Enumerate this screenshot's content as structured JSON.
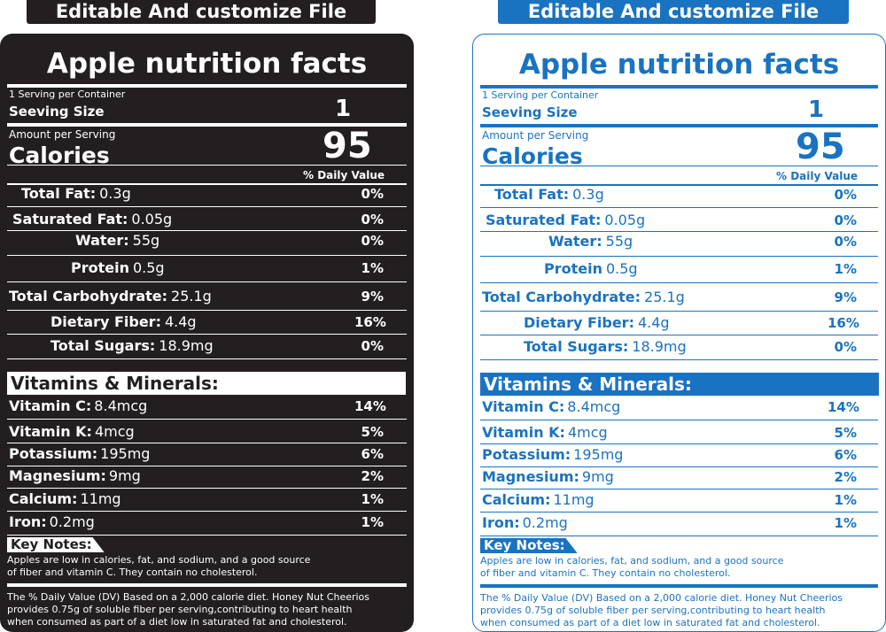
{
  "banner": "Editable And customize File",
  "title": "Apple nutrition facts",
  "servings_per_container": "1 Serving per Container",
  "serving_size_label": "Seeving Size",
  "serving_size_value": "1",
  "amount_per_serving": "Amount per Serving",
  "calories_label": "Calories",
  "calories_value": "95",
  "daily_value_header": "% Daily Value",
  "nutrients": [
    {
      "label": "Total Fat:",
      "amount": "0.3g",
      "dv": "0%"
    },
    {
      "label": "Saturated Fat:",
      "amount": "0.05g",
      "dv": "0%"
    },
    {
      "label": "Water:",
      "amount": "55g",
      "dv": "0%"
    },
    {
      "label": "Protein",
      "amount": "0.5g",
      "dv": "1%"
    },
    {
      "label": "Total Carbohydrate:",
      "amount": "25.1g",
      "dv": "9%"
    },
    {
      "label": "Dietary Fiber:",
      "amount": "4.4g",
      "dv": "16%"
    },
    {
      "label": "Total Sugars:",
      "amount": "18.9mg",
      "dv": "0%"
    }
  ],
  "vitamins_header": "Vitamins & Minerals:",
  "vitamins": [
    {
      "label": "Vitamin C:",
      "amount": "8.4mcg",
      "dv": "14%"
    },
    {
      "label": "Vitamin K:",
      "amount": "4mcg",
      "dv": "5%"
    },
    {
      "label": "Potassium:",
      "amount": "195mg",
      "dv": "6%"
    },
    {
      "label": "Magnesium:",
      "amount": "9mg",
      "dv": "2%"
    },
    {
      "label": "Calcium:",
      "amount": "11mg",
      "dv": "1%"
    },
    {
      "label": "Iron:",
      "amount": "0.2mg",
      "dv": "1%"
    }
  ],
  "key_notes_label": "Key Notes:",
  "key_notes": [
    "Apples are low in calories, fat, and sodium, and a good source",
    "of fiber and vitamin C. They contain no cholesterol."
  ],
  "footer": [
    "The % Daily Value (DV) Based on a 2,000 calorie diet. Honey Nut Cheerios",
    "provides 0.75g of soluble fiber per serving,contributing to heart health",
    "when consumed as part of a diet low in saturated fat and cholesterol."
  ],
  "colors": {
    "dark": "#231f20",
    "blue": "#1a73c0"
  }
}
